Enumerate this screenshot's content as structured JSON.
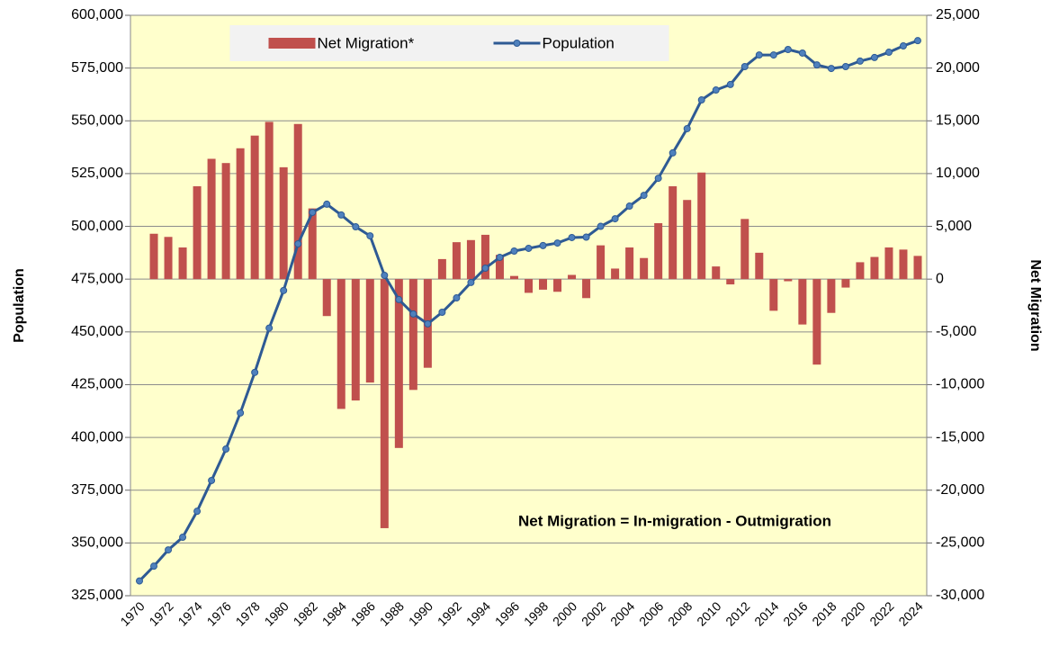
{
  "chart_data": {
    "type": "combo",
    "annotation": "Net Migration = In-migration - Outmigration",
    "ylabel": "Population",
    "y2label": "Net Migration",
    "categories": [
      "1970",
      null,
      "1972",
      null,
      "1974",
      null,
      "1976",
      null,
      "1978",
      null,
      "1980",
      null,
      "1982",
      null,
      "1984",
      null,
      "1986",
      null,
      "1988",
      null,
      "1990",
      null,
      "1992",
      null,
      "1994",
      null,
      "1996",
      null,
      "1998",
      null,
      "2000",
      null,
      "2002",
      null,
      "2004",
      null,
      "2006",
      null,
      "2008",
      null,
      "2010",
      null,
      "2012",
      null,
      "2014",
      null,
      "2016",
      null,
      "2018",
      null,
      "2020",
      null,
      "2022",
      null,
      "2024"
    ],
    "series": [
      {
        "name": "Net Migration*",
        "type": "bar",
        "axis": "y2",
        "color": "#c0504d",
        "values": [
          null,
          4300,
          4000,
          3000,
          8800,
          11400,
          11000,
          12400,
          13600,
          14900,
          10600,
          14700,
          6700,
          -3500,
          -12300,
          -11500,
          -9800,
          -23600,
          -16000,
          -10500,
          -8400,
          1900,
          3500,
          3700,
          4200,
          2300,
          300,
          -1300,
          -1000,
          -1200,
          400,
          -1800,
          3200,
          1000,
          3000,
          2000,
          5300,
          8800,
          7500,
          10100,
          1200,
          -500,
          5700,
          2500,
          -3000,
          -200,
          -4300,
          -8100,
          -3200,
          -800,
          1600,
          2100,
          3000,
          2800,
          2200
        ]
      },
      {
        "name": "Population",
        "type": "line",
        "axis": "y",
        "color": "#2e5a94",
        "marker_color": "#4f81bd",
        "values": [
          332000,
          339000,
          346700,
          352700,
          365000,
          379600,
          394500,
          411600,
          430800,
          451800,
          469600,
          491700,
          506600,
          510500,
          505400,
          499800,
          495500,
          476800,
          465300,
          458500,
          453800,
          459300,
          466100,
          473400,
          480200,
          485300,
          488300,
          489600,
          490900,
          492100,
          494700,
          494900,
          500000,
          503600,
          509600,
          514700,
          522800,
          534800,
          546300,
          559900,
          564600,
          567200,
          575700,
          581200,
          581200,
          583800,
          582100,
          576500,
          574800,
          575700,
          578300,
          580000,
          582500,
          585500,
          588000
        ]
      }
    ],
    "ylim": [
      325000,
      600000
    ],
    "yticks": [
      {
        "value": 325000,
        "label": "325,000"
      },
      {
        "value": 350000,
        "label": "350,000"
      },
      {
        "value": 375000,
        "label": "375,000"
      },
      {
        "value": 400000,
        "label": "400,000"
      },
      {
        "value": 425000,
        "label": "425,000"
      },
      {
        "value": 450000,
        "label": "450,000"
      },
      {
        "value": 475000,
        "label": "475,000"
      },
      {
        "value": 500000,
        "label": "500,000"
      },
      {
        "value": 525000,
        "label": "525,000"
      },
      {
        "value": 550000,
        "label": "550,000"
      },
      {
        "value": 575000,
        "label": "575,000"
      },
      {
        "value": 600000,
        "label": "600,000"
      }
    ],
    "y2lim": [
      -30000,
      25000
    ],
    "y2ticks": [
      {
        "value": -30000,
        "label": "-30,000"
      },
      {
        "value": -25000,
        "label": "-25,000"
      },
      {
        "value": -20000,
        "label": "-20,000"
      },
      {
        "value": -15000,
        "label": "-15,000"
      },
      {
        "value": -10000,
        "label": "-10,000"
      },
      {
        "value": -5000,
        "label": "-5,000"
      },
      0,
      {
        "value": 5000,
        "label": "5,000"
      },
      {
        "value": 10000,
        "label": "10,000"
      },
      {
        "value": 15000,
        "label": "15,000"
      },
      {
        "value": 20000,
        "label": "20,000"
      },
      {
        "value": 25000,
        "label": "25,000"
      }
    ],
    "grid": true,
    "legend": "top",
    "background": "#ffffcc"
  }
}
